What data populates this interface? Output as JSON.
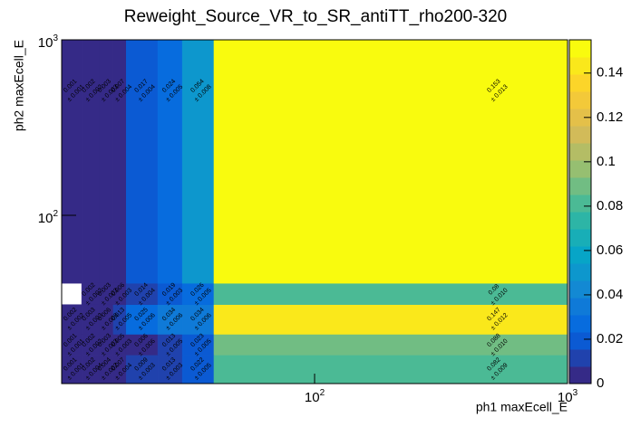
{
  "chart_data": {
    "type": "heatmap",
    "title": "Reweight_Source_VR_to_SR_antiTT_rho200-320",
    "x_label": "ph1 maxEcell_E",
    "y_label": "ph2 maxEcell_E",
    "log_x": true,
    "log_y": true,
    "x_edges": [
      10,
      12,
      14,
      16,
      18,
      24,
      30,
      40,
      1000
    ],
    "y_edges": [
      11,
      16,
      21,
      31,
      41,
      1000
    ],
    "xlim": [
      10,
      1000
    ],
    "ylim": [
      11,
      1000
    ],
    "xticks": [
      {
        "value": 100,
        "label": "10",
        "exponent": "2"
      },
      {
        "value": 1000,
        "label": "10",
        "exponent": "3"
      }
    ],
    "yticks": [
      {
        "value": 100,
        "label": "10",
        "exponent": "2"
      },
      {
        "value": 1000,
        "label": "10",
        "exponent": "3"
      }
    ],
    "values": [
      [
        0.001,
        0.002,
        0.004,
        0.007,
        0.009,
        0.013,
        0.022,
        0.082
      ],
      [
        0.001,
        0.002,
        0.003,
        0.005,
        0.006,
        0.013,
        0.023,
        0.088
      ],
      [
        0.002,
        0.003,
        0.006,
        0.013,
        0.025,
        0.034,
        0.034,
        0.147
      ],
      [
        null,
        0.002,
        0.003,
        0.006,
        0.014,
        0.019,
        0.026,
        0.08
      ],
      [
        0.001,
        0.002,
        0.003,
        0.007,
        0.017,
        0.024,
        0.054,
        0.153
      ]
    ],
    "errors": [
      [
        0.001,
        0.004,
        0.002,
        0.004,
        0.003,
        0.003,
        0.005,
        0.009
      ],
      [
        0.001,
        0.002,
        0.003,
        0.003,
        0.006,
        0.005,
        0.005,
        0.01
      ],
      [
        0.002,
        0.003,
        0.006,
        0.005,
        0.006,
        0.006,
        0.006,
        0.012
      ],
      [
        null,
        0.002,
        0.003,
        0.003,
        0.004,
        0.003,
        0.005,
        0.01
      ],
      [
        0.001,
        0.002,
        0.003,
        0.004,
        0.004,
        0.005,
        0.008,
        0.013
      ]
    ],
    "error_labels": [
      [
        "± 0.001",
        "± 0.004",
        "± 0.002",
        "± 0.004",
        "± 0.003",
        "± 0.003",
        "± 0.005",
        "± 0.009"
      ],
      [
        "± 0.001",
        "± 0.002",
        "± 0.003",
        "± 0.003",
        "± 0.006",
        "± 0.005",
        "± 0.005",
        "± 0.010"
      ],
      [
        "± 0.002",
        "± 0.003",
        "± 0.006",
        "± 0.005",
        "± 0.006",
        "± 0.006",
        "± 0.006",
        "± 0.012"
      ],
      [
        null,
        "± 0.002",
        "± 0.003",
        "± 0.003",
        "± 0.004",
        "± 0.003",
        "± 0.005",
        "± 0.010"
      ],
      [
        "± 0.001",
        "± 0.002",
        "± 0.003",
        "± 0.004",
        "± 0.004",
        "± 0.005",
        "± 0.008",
        "± 0.013"
      ]
    ],
    "zlim": [
      0,
      0.155
    ],
    "zticks": [
      0,
      0.02,
      0.04,
      0.06,
      0.08,
      0.1,
      0.12,
      0.14
    ],
    "contours": 20,
    "palette": [
      "#352a87",
      "#0363e1",
      "#1485d4",
      "#06a7c6",
      "#38b99e",
      "#92bf73",
      "#d9ba56",
      "#fcce2e",
      "#f9fb0e"
    ]
  }
}
